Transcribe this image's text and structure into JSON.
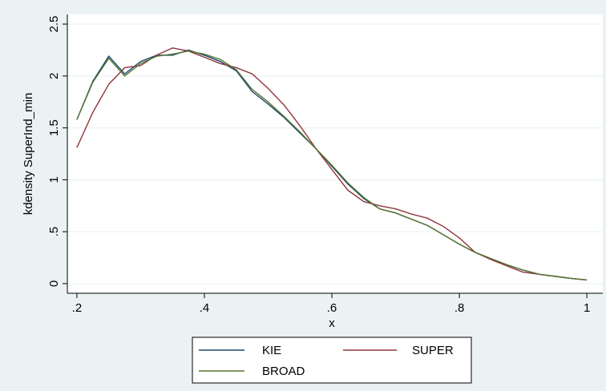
{
  "chart_data": {
    "type": "line",
    "xlabel": "x",
    "ylabel": "kdensity SuperInd_min",
    "x": [
      0.2,
      0.225,
      0.25,
      0.275,
      0.3,
      0.325,
      0.35,
      0.375,
      0.4,
      0.425,
      0.45,
      0.475,
      0.5,
      0.525,
      0.55,
      0.575,
      0.6,
      0.625,
      0.65,
      0.675,
      0.7,
      0.725,
      0.75,
      0.775,
      0.8,
      0.825,
      0.85,
      0.875,
      0.9,
      0.925,
      0.95,
      0.975,
      1
    ],
    "series": [
      {
        "name": "KIE",
        "color": "#1a476f",
        "values": [
          1.58,
          1.95,
          2.19,
          2.02,
          2.14,
          2.2,
          2.2,
          2.25,
          2.2,
          2.14,
          2.05,
          1.85,
          1.73,
          1.6,
          1.45,
          1.3,
          1.13,
          0.96,
          0.82,
          0.72,
          0.68,
          0.62,
          0.56,
          0.47,
          0.38,
          0.3,
          0.24,
          0.18,
          0.13,
          0.09,
          0.07,
          0.05,
          0.035
        ]
      },
      {
        "name": "SUPER",
        "color": "#90353b",
        "values": [
          1.31,
          1.65,
          1.92,
          2.08,
          2.1,
          2.2,
          2.27,
          2.24,
          2.18,
          2.12,
          2.08,
          2.02,
          1.88,
          1.72,
          1.52,
          1.3,
          1.1,
          0.9,
          0.79,
          0.75,
          0.72,
          0.67,
          0.63,
          0.55,
          0.44,
          0.3,
          0.23,
          0.17,
          0.11,
          0.09,
          0.07,
          0.05,
          0.035
        ]
      },
      {
        "name": "BROAD",
        "color": "#55752f",
        "values": [
          1.58,
          1.94,
          2.17,
          2.0,
          2.12,
          2.19,
          2.21,
          2.24,
          2.21,
          2.16,
          2.06,
          1.87,
          1.75,
          1.61,
          1.46,
          1.3,
          1.14,
          0.97,
          0.83,
          0.72,
          0.68,
          0.62,
          0.56,
          0.47,
          0.38,
          0.3,
          0.24,
          0.18,
          0.13,
          0.09,
          0.07,
          0.05,
          0.035
        ]
      }
    ],
    "xlim": [
      0.185,
      1.025
    ],
    "xticks": [
      {
        "value": 0.2,
        "label": ".2"
      },
      {
        "value": 0.4,
        "label": ".4"
      },
      {
        "value": 0.6,
        "label": ".6"
      },
      {
        "value": 0.8,
        "label": ".8"
      },
      1
    ],
    "ylim": [
      -0.093,
      2.593
    ],
    "yticks": [
      0,
      {
        "value": 0.5,
        "label": ".5"
      },
      1,
      1.5,
      2,
      2.5
    ],
    "grid": true
  }
}
